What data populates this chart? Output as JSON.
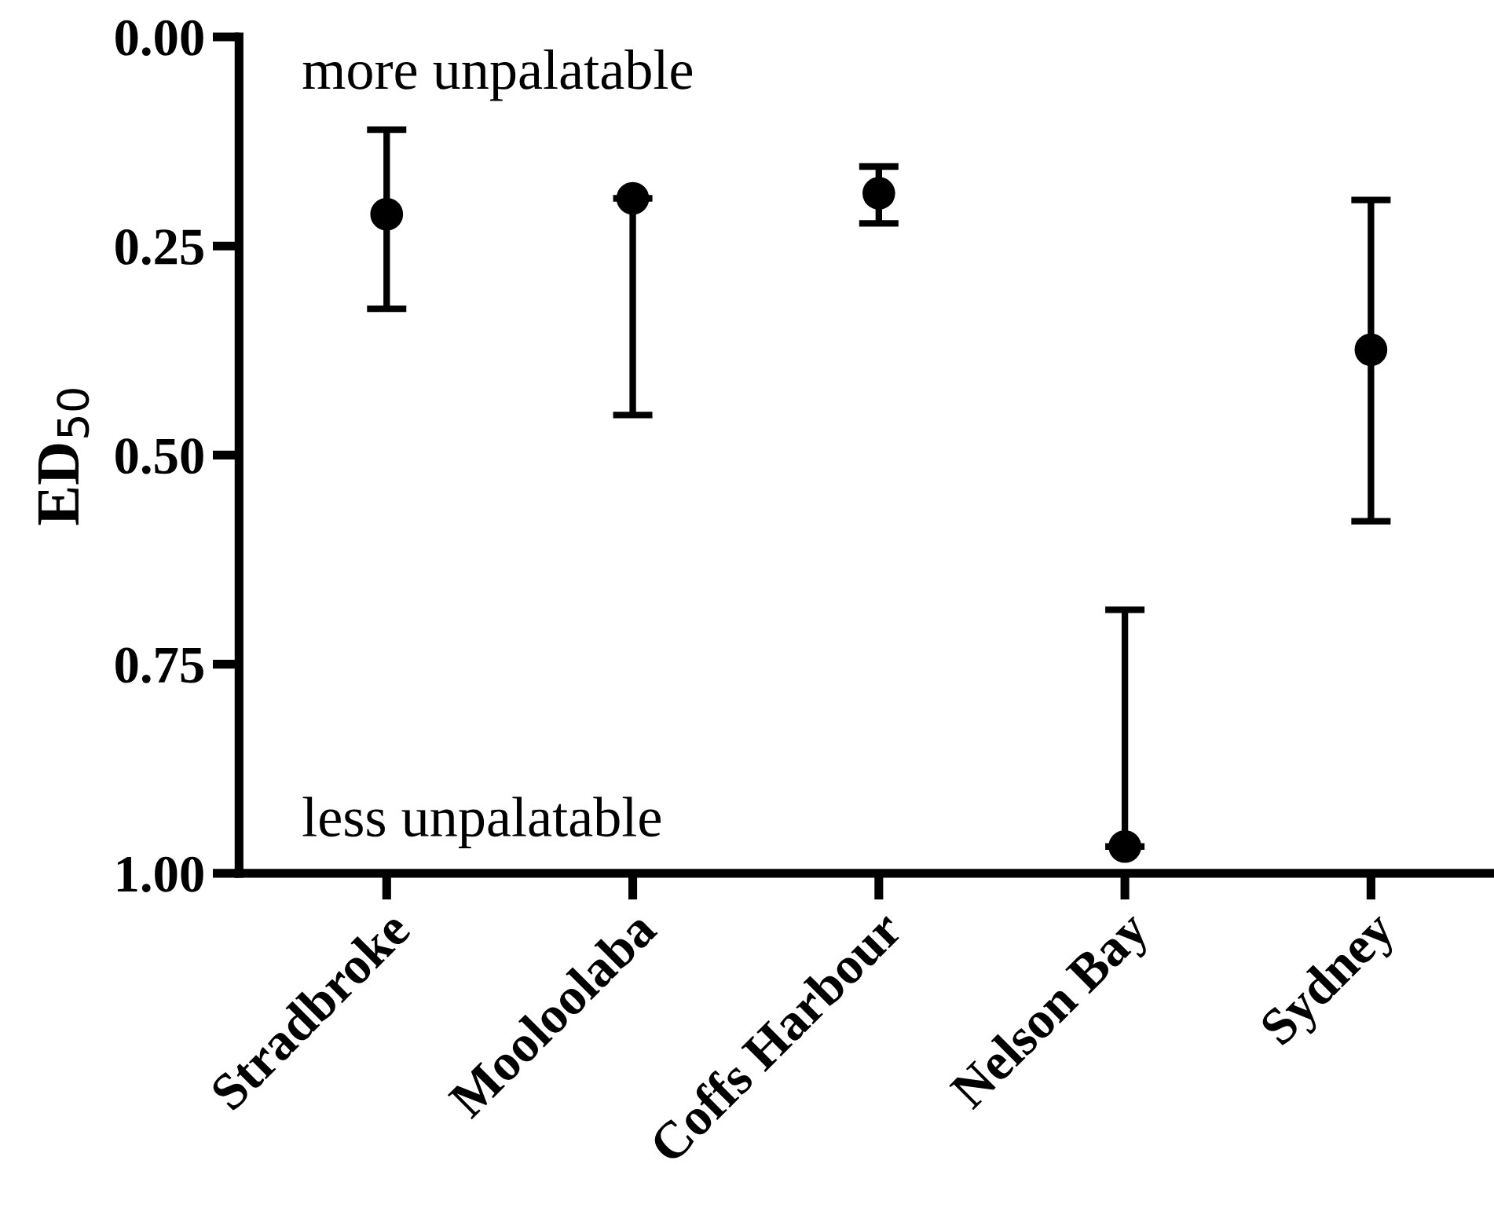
{
  "chart_data": {
    "type": "scatter",
    "ylabel": "ED$_{50}$",
    "categories": [
      "Stradbroke",
      "Mooloolaba",
      "Coffs Harbour",
      "Nelson Bay",
      "Sydney"
    ],
    "values": [
      0.212,
      0.193,
      0.187,
      0.968,
      0.374
    ],
    "errors": [
      [
        0.111,
        0.325
      ],
      [
        0.193,
        0.452
      ],
      [
        0.155,
        0.223
      ],
      [
        0.685,
        0.968
      ],
      [
        0.195,
        0.579
      ]
    ],
    "color": "#000000",
    "marker": "circle",
    "ylim": [
      1.0,
      0.0
    ],
    "yticks": [
      {
        "value": 0,
        "label": "0.00"
      },
      {
        "value": 0.25,
        "label": "0.25"
      },
      {
        "value": 0.5,
        "label": "0.50"
      },
      {
        "value": 0.75,
        "label": "0.75"
      },
      {
        "value": 1.0,
        "label": "1.00"
      }
    ],
    "grid": false,
    "annotations": [
      "more unpalatable",
      "less unpalatable"
    ]
  }
}
